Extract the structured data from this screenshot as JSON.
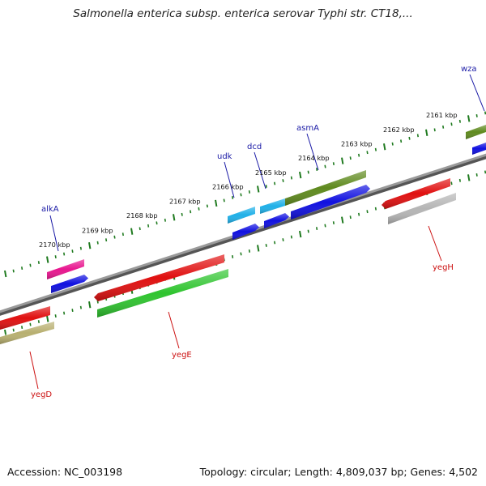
{
  "title": "Salmonella enterica subsp. enterica serovar Typhi str. CT18,...",
  "footer": {
    "accession": "Accession: NC_003198",
    "summary": "Topology: circular; Length: 4,809,037 bp; Genes: 4,502"
  },
  "colors": {
    "backbone": "#8a8a8a",
    "tick": "#1f7a1f",
    "upper_label": "#1a1aa6",
    "lower_label": "#cc1111",
    "scale_label": "#111111"
  },
  "scale_labels": [
    "2170 kbp",
    "2169 kbp",
    "2168 kbp",
    "2167 kbp",
    "2166 kbp",
    "2165 kbp",
    "2164 kbp",
    "2163 kbp",
    "2162 kbp",
    "2161 kbp"
  ],
  "upper_genes": [
    {
      "name": "alkA",
      "color": "#1a1aa6"
    },
    {
      "name": "udk",
      "color": "#1a1aa6"
    },
    {
      "name": "dcd",
      "color": "#1a1aa6"
    },
    {
      "name": "asmA",
      "color": "#1a1aa6"
    },
    {
      "name": "wza",
      "color": "#1a1aa6"
    }
  ],
  "lower_genes": [
    {
      "name": "yegD",
      "color": "#cc1111"
    },
    {
      "name": "yegE",
      "color": "#cc1111"
    },
    {
      "name": "yegH",
      "color": "#cc1111"
    }
  ],
  "features": [
    {
      "id": "f-alkA-top",
      "color": "#e8168f"
    },
    {
      "id": "f-alkA-bot",
      "color": "#1010e0"
    },
    {
      "id": "f-udk-top",
      "color": "#1fb0e8"
    },
    {
      "id": "f-udk-bot",
      "color": "#1010e0"
    },
    {
      "id": "f-dcd-top",
      "color": "#1fb0e8"
    },
    {
      "id": "f-dcd-bot",
      "color": "#1010e0"
    },
    {
      "id": "f-asmA-top",
      "color": "#5f8a1e"
    },
    {
      "id": "f-asmA-bot",
      "color": "#1010e0"
    },
    {
      "id": "f-wza-top",
      "color": "#5f8a1e"
    },
    {
      "id": "f-wza-bot",
      "color": "#1010e0"
    },
    {
      "id": "f-yegD-top",
      "color": "#e01010"
    },
    {
      "id": "f-yegD-bot",
      "color": "#b8b070"
    },
    {
      "id": "f-yegE-top",
      "color": "#e01010"
    },
    {
      "id": "f-yegE-bot",
      "color": "#2fc42f"
    },
    {
      "id": "f-yegH-top",
      "color": "#e01010"
    },
    {
      "id": "f-yegH-bot",
      "color": "#b5b5b5"
    }
  ]
}
